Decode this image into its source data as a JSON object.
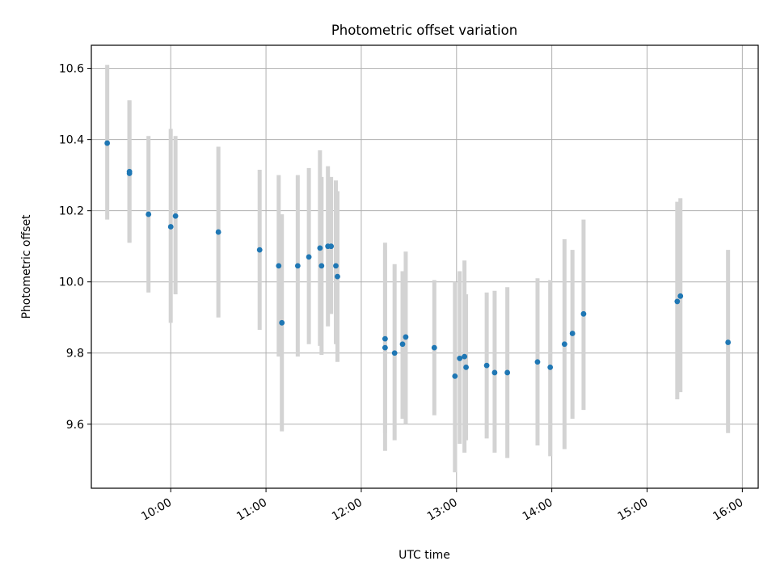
{
  "chart_data": {
    "type": "scatter",
    "title": "Photometric offset variation",
    "xlabel": "UTC time",
    "ylabel": "Photometric offset",
    "x_unit": "UTC time (HH:MM)",
    "xlim": [
      "09:10",
      "16:10"
    ],
    "ylim": [
      9.42,
      10.665
    ],
    "x_ticks": [
      "10:00",
      "11:00",
      "12:00",
      "13:00",
      "14:00",
      "15:00",
      "16:00"
    ],
    "y_ticks": [
      "9.6",
      "9.8",
      "10.0",
      "10.2",
      "10.4",
      "10.6"
    ],
    "grid": true,
    "legend": "none",
    "marker_color": "#1f77b4",
    "errorbar_color": "#d3d3d3",
    "series": [
      {
        "points": [
          {
            "x": "09:20",
            "y": 10.39,
            "ylo": 10.175,
            "yhi": 10.61
          },
          {
            "x": "09:34",
            "y": 10.305,
            "ylo": 10.11,
            "yhi": 10.51
          },
          {
            "x": "09:34",
            "y": 10.31,
            "ylo": 10.11,
            "yhi": 10.51
          },
          {
            "x": "09:46",
            "y": 10.19,
            "ylo": 9.97,
            "yhi": 10.41
          },
          {
            "x": "10:00",
            "y": 10.155,
            "ylo": 9.885,
            "yhi": 10.43
          },
          {
            "x": "10:03",
            "y": 10.185,
            "ylo": 9.965,
            "yhi": 10.41
          },
          {
            "x": "10:30",
            "y": 10.14,
            "ylo": 9.9,
            "yhi": 10.38
          },
          {
            "x": "10:56",
            "y": 10.09,
            "ylo": 9.865,
            "yhi": 10.315
          },
          {
            "x": "11:08",
            "y": 10.045,
            "ylo": 9.79,
            "yhi": 10.3
          },
          {
            "x": "11:10",
            "y": 9.885,
            "ylo": 9.58,
            "yhi": 10.19
          },
          {
            "x": "11:20",
            "y": 10.045,
            "ylo": 9.79,
            "yhi": 10.3
          },
          {
            "x": "11:27",
            "y": 10.07,
            "ylo": 9.825,
            "yhi": 10.32
          },
          {
            "x": "11:34",
            "y": 10.095,
            "ylo": 9.82,
            "yhi": 10.37
          },
          {
            "x": "11:35",
            "y": 10.045,
            "ylo": 9.795,
            "yhi": 10.295
          },
          {
            "x": "11:39",
            "y": 10.1,
            "ylo": 9.875,
            "yhi": 10.325
          },
          {
            "x": "11:41",
            "y": 10.1,
            "ylo": 9.91,
            "yhi": 10.295
          },
          {
            "x": "11:44",
            "y": 10.045,
            "ylo": 9.825,
            "yhi": 10.285
          },
          {
            "x": "11:45",
            "y": 10.015,
            "ylo": 9.775,
            "yhi": 10.255
          },
          {
            "x": "12:15",
            "y": 9.84,
            "ylo": 9.575,
            "yhi": 10.11
          },
          {
            "x": "12:15",
            "y": 9.815,
            "ylo": 9.525,
            "yhi": 10.09
          },
          {
            "x": "12:21",
            "y": 9.8,
            "ylo": 9.555,
            "yhi": 10.05
          },
          {
            "x": "12:26",
            "y": 9.825,
            "ylo": 9.615,
            "yhi": 10.03
          },
          {
            "x": "12:28",
            "y": 9.845,
            "ylo": 9.6,
            "yhi": 10.085
          },
          {
            "x": "12:46",
            "y": 9.815,
            "ylo": 9.625,
            "yhi": 10.005
          },
          {
            "x": "12:59",
            "y": 9.735,
            "ylo": 9.465,
            "yhi": 10.0
          },
          {
            "x": "13:02",
            "y": 9.785,
            "ylo": 9.545,
            "yhi": 10.03
          },
          {
            "x": "13:05",
            "y": 9.79,
            "ylo": 9.52,
            "yhi": 10.06
          },
          {
            "x": "13:06",
            "y": 9.76,
            "ylo": 9.555,
            "yhi": 9.965
          },
          {
            "x": "13:19",
            "y": 9.765,
            "ylo": 9.56,
            "yhi": 9.97
          },
          {
            "x": "13:24",
            "y": 9.745,
            "ylo": 9.52,
            "yhi": 9.975
          },
          {
            "x": "13:32",
            "y": 9.745,
            "ylo": 9.505,
            "yhi": 9.985
          },
          {
            "x": "13:51",
            "y": 9.775,
            "ylo": 9.54,
            "yhi": 10.01
          },
          {
            "x": "13:59",
            "y": 9.76,
            "ylo": 9.51,
            "yhi": 10.005
          },
          {
            "x": "14:08",
            "y": 9.825,
            "ylo": 9.53,
            "yhi": 10.12
          },
          {
            "x": "14:13",
            "y": 9.855,
            "ylo": 9.615,
            "yhi": 10.09
          },
          {
            "x": "14:20",
            "y": 9.91,
            "ylo": 9.64,
            "yhi": 10.175
          },
          {
            "x": "15:19",
            "y": 9.945,
            "ylo": 9.67,
            "yhi": 10.225
          },
          {
            "x": "15:21",
            "y": 9.96,
            "ylo": 9.69,
            "yhi": 10.235
          },
          {
            "x": "15:51",
            "y": 9.83,
            "ylo": 9.575,
            "yhi": 10.09
          }
        ]
      }
    ]
  }
}
